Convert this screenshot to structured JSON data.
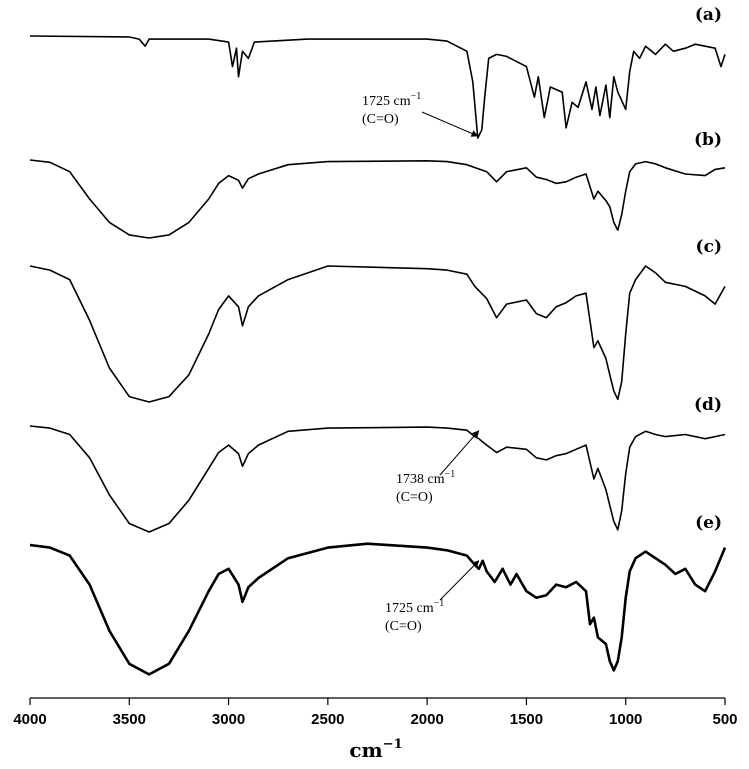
{
  "chart_data": {
    "type": "line",
    "xlabel": "cm",
    "xlabel_sup": "−1",
    "xlim": [
      4000,
      500
    ],
    "x_reversed": true,
    "xticks": [
      4000,
      3500,
      3000,
      2500,
      2000,
      1500,
      1000,
      500
    ],
    "series": [
      {
        "name": "(a)",
        "points": [
          [
            4000,
            0.0
          ],
          [
            3500,
            0.01
          ],
          [
            3450,
            0.03
          ],
          [
            3420,
            0.1
          ],
          [
            3400,
            0.03
          ],
          [
            3100,
            0.03
          ],
          [
            3000,
            0.06
          ],
          [
            2980,
            0.3
          ],
          [
            2960,
            0.12
          ],
          [
            2950,
            0.4
          ],
          [
            2930,
            0.15
          ],
          [
            2900,
            0.22
          ],
          [
            2870,
            0.06
          ],
          [
            2600,
            0.03
          ],
          [
            2000,
            0.03
          ],
          [
            1900,
            0.05
          ],
          [
            1800,
            0.15
          ],
          [
            1770,
            0.45
          ],
          [
            1745,
            1.0
          ],
          [
            1725,
            0.92
          ],
          [
            1710,
            0.6
          ],
          [
            1690,
            0.22
          ],
          [
            1650,
            0.18
          ],
          [
            1600,
            0.2
          ],
          [
            1500,
            0.3
          ],
          [
            1460,
            0.6
          ],
          [
            1440,
            0.4
          ],
          [
            1410,
            0.8
          ],
          [
            1380,
            0.5
          ],
          [
            1320,
            0.55
          ],
          [
            1300,
            0.9
          ],
          [
            1270,
            0.65
          ],
          [
            1240,
            0.7
          ],
          [
            1200,
            0.45
          ],
          [
            1170,
            0.72
          ],
          [
            1150,
            0.5
          ],
          [
            1130,
            0.78
          ],
          [
            1100,
            0.48
          ],
          [
            1080,
            0.8
          ],
          [
            1060,
            0.4
          ],
          [
            1040,
            0.55
          ],
          [
            1000,
            0.72
          ],
          [
            980,
            0.35
          ],
          [
            960,
            0.15
          ],
          [
            930,
            0.22
          ],
          [
            900,
            0.1
          ],
          [
            850,
            0.18
          ],
          [
            800,
            0.08
          ],
          [
            760,
            0.15
          ],
          [
            700,
            0.12
          ],
          [
            650,
            0.08
          ],
          [
            600,
            0.1
          ],
          [
            550,
            0.12
          ],
          [
            520,
            0.3
          ],
          [
            500,
            0.18
          ]
        ]
      },
      {
        "name": "(b)",
        "points": [
          [
            4000,
            0.0
          ],
          [
            3900,
            0.03
          ],
          [
            3800,
            0.15
          ],
          [
            3700,
            0.5
          ],
          [
            3600,
            0.8
          ],
          [
            3500,
            0.96
          ],
          [
            3400,
            1.0
          ],
          [
            3300,
            0.96
          ],
          [
            3200,
            0.8
          ],
          [
            3100,
            0.5
          ],
          [
            3050,
            0.3
          ],
          [
            3000,
            0.2
          ],
          [
            2950,
            0.26
          ],
          [
            2930,
            0.36
          ],
          [
            2900,
            0.24
          ],
          [
            2850,
            0.18
          ],
          [
            2700,
            0.06
          ],
          [
            2500,
            0.02
          ],
          [
            2000,
            0.01
          ],
          [
            1900,
            0.02
          ],
          [
            1800,
            0.06
          ],
          [
            1700,
            0.15
          ],
          [
            1650,
            0.28
          ],
          [
            1600,
            0.15
          ],
          [
            1500,
            0.1
          ],
          [
            1450,
            0.22
          ],
          [
            1400,
            0.25
          ],
          [
            1350,
            0.3
          ],
          [
            1300,
            0.28
          ],
          [
            1250,
            0.22
          ],
          [
            1200,
            0.18
          ],
          [
            1160,
            0.5
          ],
          [
            1140,
            0.4
          ],
          [
            1100,
            0.52
          ],
          [
            1080,
            0.6
          ],
          [
            1060,
            0.8
          ],
          [
            1040,
            0.9
          ],
          [
            1020,
            0.7
          ],
          [
            1000,
            0.4
          ],
          [
            980,
            0.15
          ],
          [
            950,
            0.05
          ],
          [
            900,
            0.02
          ],
          [
            850,
            0.05
          ],
          [
            800,
            0.1
          ],
          [
            700,
            0.18
          ],
          [
            600,
            0.2
          ],
          [
            550,
            0.12
          ],
          [
            500,
            0.1
          ]
        ]
      },
      {
        "name": "(c)",
        "points": [
          [
            4000,
            0.0
          ],
          [
            3900,
            0.03
          ],
          [
            3800,
            0.1
          ],
          [
            3700,
            0.4
          ],
          [
            3600,
            0.75
          ],
          [
            3500,
            0.96
          ],
          [
            3400,
            1.0
          ],
          [
            3300,
            0.96
          ],
          [
            3200,
            0.8
          ],
          [
            3100,
            0.5
          ],
          [
            3050,
            0.32
          ],
          [
            3000,
            0.22
          ],
          [
            2950,
            0.3
          ],
          [
            2930,
            0.44
          ],
          [
            2900,
            0.3
          ],
          [
            2850,
            0.22
          ],
          [
            2700,
            0.1
          ],
          [
            2500,
            0.0
          ],
          [
            2000,
            0.02
          ],
          [
            1900,
            0.03
          ],
          [
            1800,
            0.06
          ],
          [
            1760,
            0.15
          ],
          [
            1700,
            0.24
          ],
          [
            1650,
            0.38
          ],
          [
            1600,
            0.28
          ],
          [
            1500,
            0.25
          ],
          [
            1450,
            0.35
          ],
          [
            1400,
            0.38
          ],
          [
            1350,
            0.3
          ],
          [
            1300,
            0.27
          ],
          [
            1250,
            0.22
          ],
          [
            1200,
            0.2
          ],
          [
            1160,
            0.6
          ],
          [
            1140,
            0.55
          ],
          [
            1100,
            0.68
          ],
          [
            1080,
            0.8
          ],
          [
            1060,
            0.92
          ],
          [
            1040,
            0.98
          ],
          [
            1020,
            0.85
          ],
          [
            1000,
            0.5
          ],
          [
            980,
            0.2
          ],
          [
            950,
            0.1
          ],
          [
            900,
            0.0
          ],
          [
            850,
            0.05
          ],
          [
            800,
            0.12
          ],
          [
            700,
            0.15
          ],
          [
            600,
            0.22
          ],
          [
            550,
            0.28
          ],
          [
            500,
            0.15
          ]
        ]
      },
      {
        "name": "(d)",
        "points": [
          [
            4000,
            0.0
          ],
          [
            3900,
            0.02
          ],
          [
            3800,
            0.08
          ],
          [
            3700,
            0.3
          ],
          [
            3600,
            0.65
          ],
          [
            3500,
            0.92
          ],
          [
            3400,
            1.0
          ],
          [
            3300,
            0.92
          ],
          [
            3200,
            0.7
          ],
          [
            3100,
            0.4
          ],
          [
            3050,
            0.25
          ],
          [
            3000,
            0.18
          ],
          [
            2950,
            0.26
          ],
          [
            2930,
            0.38
          ],
          [
            2900,
            0.26
          ],
          [
            2850,
            0.18
          ],
          [
            2700,
            0.05
          ],
          [
            2500,
            0.02
          ],
          [
            2000,
            0.01
          ],
          [
            1900,
            0.02
          ],
          [
            1800,
            0.04
          ],
          [
            1760,
            0.1
          ],
          [
            1740,
            0.12
          ],
          [
            1700,
            0.18
          ],
          [
            1650,
            0.25
          ],
          [
            1600,
            0.2
          ],
          [
            1500,
            0.22
          ],
          [
            1450,
            0.3
          ],
          [
            1400,
            0.32
          ],
          [
            1350,
            0.28
          ],
          [
            1300,
            0.26
          ],
          [
            1250,
            0.22
          ],
          [
            1200,
            0.18
          ],
          [
            1160,
            0.5
          ],
          [
            1140,
            0.4
          ],
          [
            1100,
            0.6
          ],
          [
            1080,
            0.75
          ],
          [
            1060,
            0.9
          ],
          [
            1040,
            0.98
          ],
          [
            1020,
            0.8
          ],
          [
            1000,
            0.45
          ],
          [
            980,
            0.2
          ],
          [
            950,
            0.1
          ],
          [
            900,
            0.05
          ],
          [
            850,
            0.08
          ],
          [
            800,
            0.1
          ],
          [
            700,
            0.08
          ],
          [
            600,
            0.12
          ],
          [
            550,
            0.1
          ],
          [
            500,
            0.08
          ]
        ]
      },
      {
        "name": "(e)",
        "points": [
          [
            4000,
            0.0
          ],
          [
            3900,
            0.02
          ],
          [
            3800,
            0.08
          ],
          [
            3700,
            0.3
          ],
          [
            3600,
            0.65
          ],
          [
            3500,
            0.9
          ],
          [
            3400,
            0.98
          ],
          [
            3300,
            0.9
          ],
          [
            3200,
            0.65
          ],
          [
            3100,
            0.35
          ],
          [
            3050,
            0.22
          ],
          [
            3000,
            0.18
          ],
          [
            2950,
            0.3
          ],
          [
            2930,
            0.43
          ],
          [
            2900,
            0.32
          ],
          [
            2850,
            0.25
          ],
          [
            2700,
            0.1
          ],
          [
            2500,
            0.02
          ],
          [
            2300,
            -0.01
          ],
          [
            2000,
            0.02
          ],
          [
            1900,
            0.04
          ],
          [
            1800,
            0.08
          ],
          [
            1760,
            0.15
          ],
          [
            1740,
            0.18
          ],
          [
            1720,
            0.12
          ],
          [
            1700,
            0.2
          ],
          [
            1660,
            0.28
          ],
          [
            1620,
            0.18
          ],
          [
            1580,
            0.3
          ],
          [
            1550,
            0.22
          ],
          [
            1500,
            0.35
          ],
          [
            1450,
            0.4
          ],
          [
            1400,
            0.38
          ],
          [
            1350,
            0.3
          ],
          [
            1300,
            0.32
          ],
          [
            1250,
            0.28
          ],
          [
            1200,
            0.35
          ],
          [
            1180,
            0.6
          ],
          [
            1160,
            0.55
          ],
          [
            1140,
            0.7
          ],
          [
            1100,
            0.75
          ],
          [
            1080,
            0.88
          ],
          [
            1060,
            0.95
          ],
          [
            1040,
            0.88
          ],
          [
            1020,
            0.7
          ],
          [
            1000,
            0.4
          ],
          [
            980,
            0.2
          ],
          [
            950,
            0.1
          ],
          [
            900,
            0.05
          ],
          [
            850,
            0.1
          ],
          [
            800,
            0.15
          ],
          [
            750,
            0.22
          ],
          [
            700,
            0.18
          ],
          [
            650,
            0.3
          ],
          [
            600,
            0.35
          ],
          [
            550,
            0.2
          ],
          [
            500,
            0.02
          ]
        ]
      }
    ],
    "annotations": [
      {
        "panel": 0,
        "line1": "1725 cm",
        "line1_sup": "−1",
        "line2": "(C=O)",
        "x": 1745
      },
      {
        "panel": 3,
        "line1": "1738 cm",
        "line1_sup": "−1",
        "line2": "(C=O)",
        "x": 1740
      },
      {
        "panel": 4,
        "line1": "1725 cm",
        "line1_sup": "−1",
        "line2": "(C=O)",
        "x": 1740
      }
    ]
  }
}
